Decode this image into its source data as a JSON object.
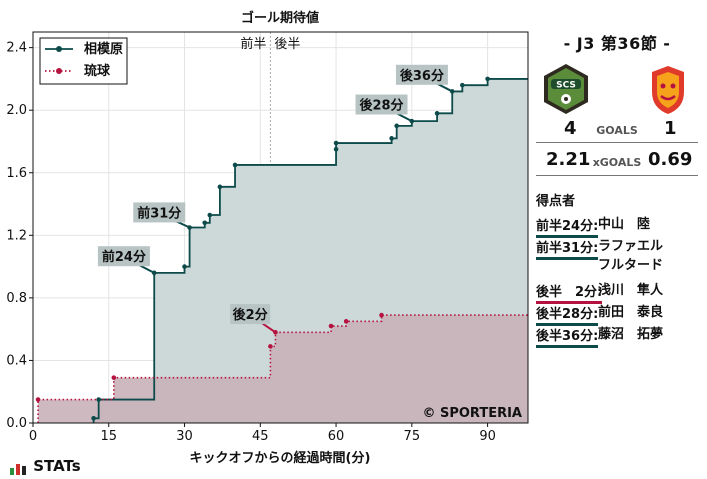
{
  "chart_data": {
    "type": "line",
    "title": "ゴール期待値",
    "xlabel": "キックオフからの経過時間(分)",
    "ylabel": "",
    "xlim": [
      0,
      98
    ],
    "ylim": [
      0,
      2.5
    ],
    "xticks": [
      0,
      15,
      30,
      45,
      60,
      75,
      90
    ],
    "yticks": [
      0.0,
      0.4,
      0.8,
      1.2,
      1.6,
      2.0,
      2.4
    ],
    "ytick_labels": [
      "0.0",
      "0.4",
      "0.8",
      "1.2",
      "1.6",
      "2.0",
      "2.4"
    ],
    "halftime": {
      "minute": 47,
      "first_label": "前半",
      "second_label": "後半"
    },
    "legend_position": "top-left",
    "grid": true,
    "watermark": "© SPORTERIA",
    "series": [
      {
        "name": "相模原",
        "color": "#0d4a4a",
        "fill": "#cdd9d9",
        "style": "solid",
        "points": [
          [
            12,
            0.03
          ],
          [
            13,
            0.15
          ],
          [
            24,
            0.96
          ],
          [
            30,
            1.0
          ],
          [
            31,
            1.25
          ],
          [
            34,
            1.28
          ],
          [
            35,
            1.33
          ],
          [
            37,
            1.51
          ],
          [
            40,
            1.65
          ],
          [
            60,
            1.75
          ],
          [
            60,
            1.79
          ],
          [
            71,
            1.82
          ],
          [
            72,
            1.9
          ],
          [
            75,
            1.93
          ],
          [
            80,
            1.98
          ],
          [
            83,
            2.12
          ],
          [
            85,
            2.16
          ],
          [
            90,
            2.2
          ],
          [
            98,
            2.2
          ]
        ]
      },
      {
        "name": "琉球",
        "color": "#b5123f",
        "fill": "#c9b1b9",
        "style": "dotted",
        "points": [
          [
            1,
            0.15
          ],
          [
            16,
            0.29
          ],
          [
            47,
            0.49
          ],
          [
            48,
            0.58
          ],
          [
            59,
            0.62
          ],
          [
            62,
            0.65
          ],
          [
            69,
            0.69
          ],
          [
            98,
            0.69
          ]
        ]
      }
    ],
    "annotations": [
      {
        "label": "前24分",
        "team": "home",
        "x": 24,
        "y": 0.96,
        "lx": 18,
        "ly": 1.06
      },
      {
        "label": "前31分",
        "team": "home",
        "x": 31,
        "y": 1.25,
        "lx": 25,
        "ly": 1.34
      },
      {
        "label": "後2分",
        "team": "away",
        "x": 48,
        "y": 0.58,
        "lx": 43,
        "ly": 0.69
      },
      {
        "label": "後28分",
        "team": "home",
        "x": 75,
        "y": 1.93,
        "lx": 69,
        "ly": 2.03
      },
      {
        "label": "後36分",
        "team": "home",
        "x": 83,
        "y": 2.12,
        "lx": 77,
        "ly": 2.22
      }
    ]
  },
  "panel": {
    "match_title": "-  J3 第36節  -",
    "home_logo_text": "SCS",
    "home_goals": "4",
    "goals_label": "GOALS",
    "away_goals": "1",
    "home_xg": "2.21",
    "xg_label": "xGOALS",
    "away_xg": "0.69",
    "scorers_title": "得点者",
    "scorers": [
      {
        "time": "前半24分:",
        "name": "中山　陸",
        "team": "home"
      },
      {
        "time": "前半31分:",
        "name": "ラファエル\nフルタード",
        "team": "home"
      },
      {
        "time": "後半　2分:",
        "name": "浅川　隼人",
        "team": "away"
      },
      {
        "time": "後半28分:",
        "name": "前田　泰良",
        "team": "home"
      },
      {
        "time": "後半36分:",
        "name": "藤沼　拓夢",
        "team": "home"
      }
    ]
  },
  "brand": {
    "text": "STATs",
    "icon": "stats-bars-icon"
  },
  "colors": {
    "home": "#0d4a4a",
    "away": "#b5123f",
    "label_bg": "#b8c4c4",
    "grid": "#e4e4e4"
  }
}
